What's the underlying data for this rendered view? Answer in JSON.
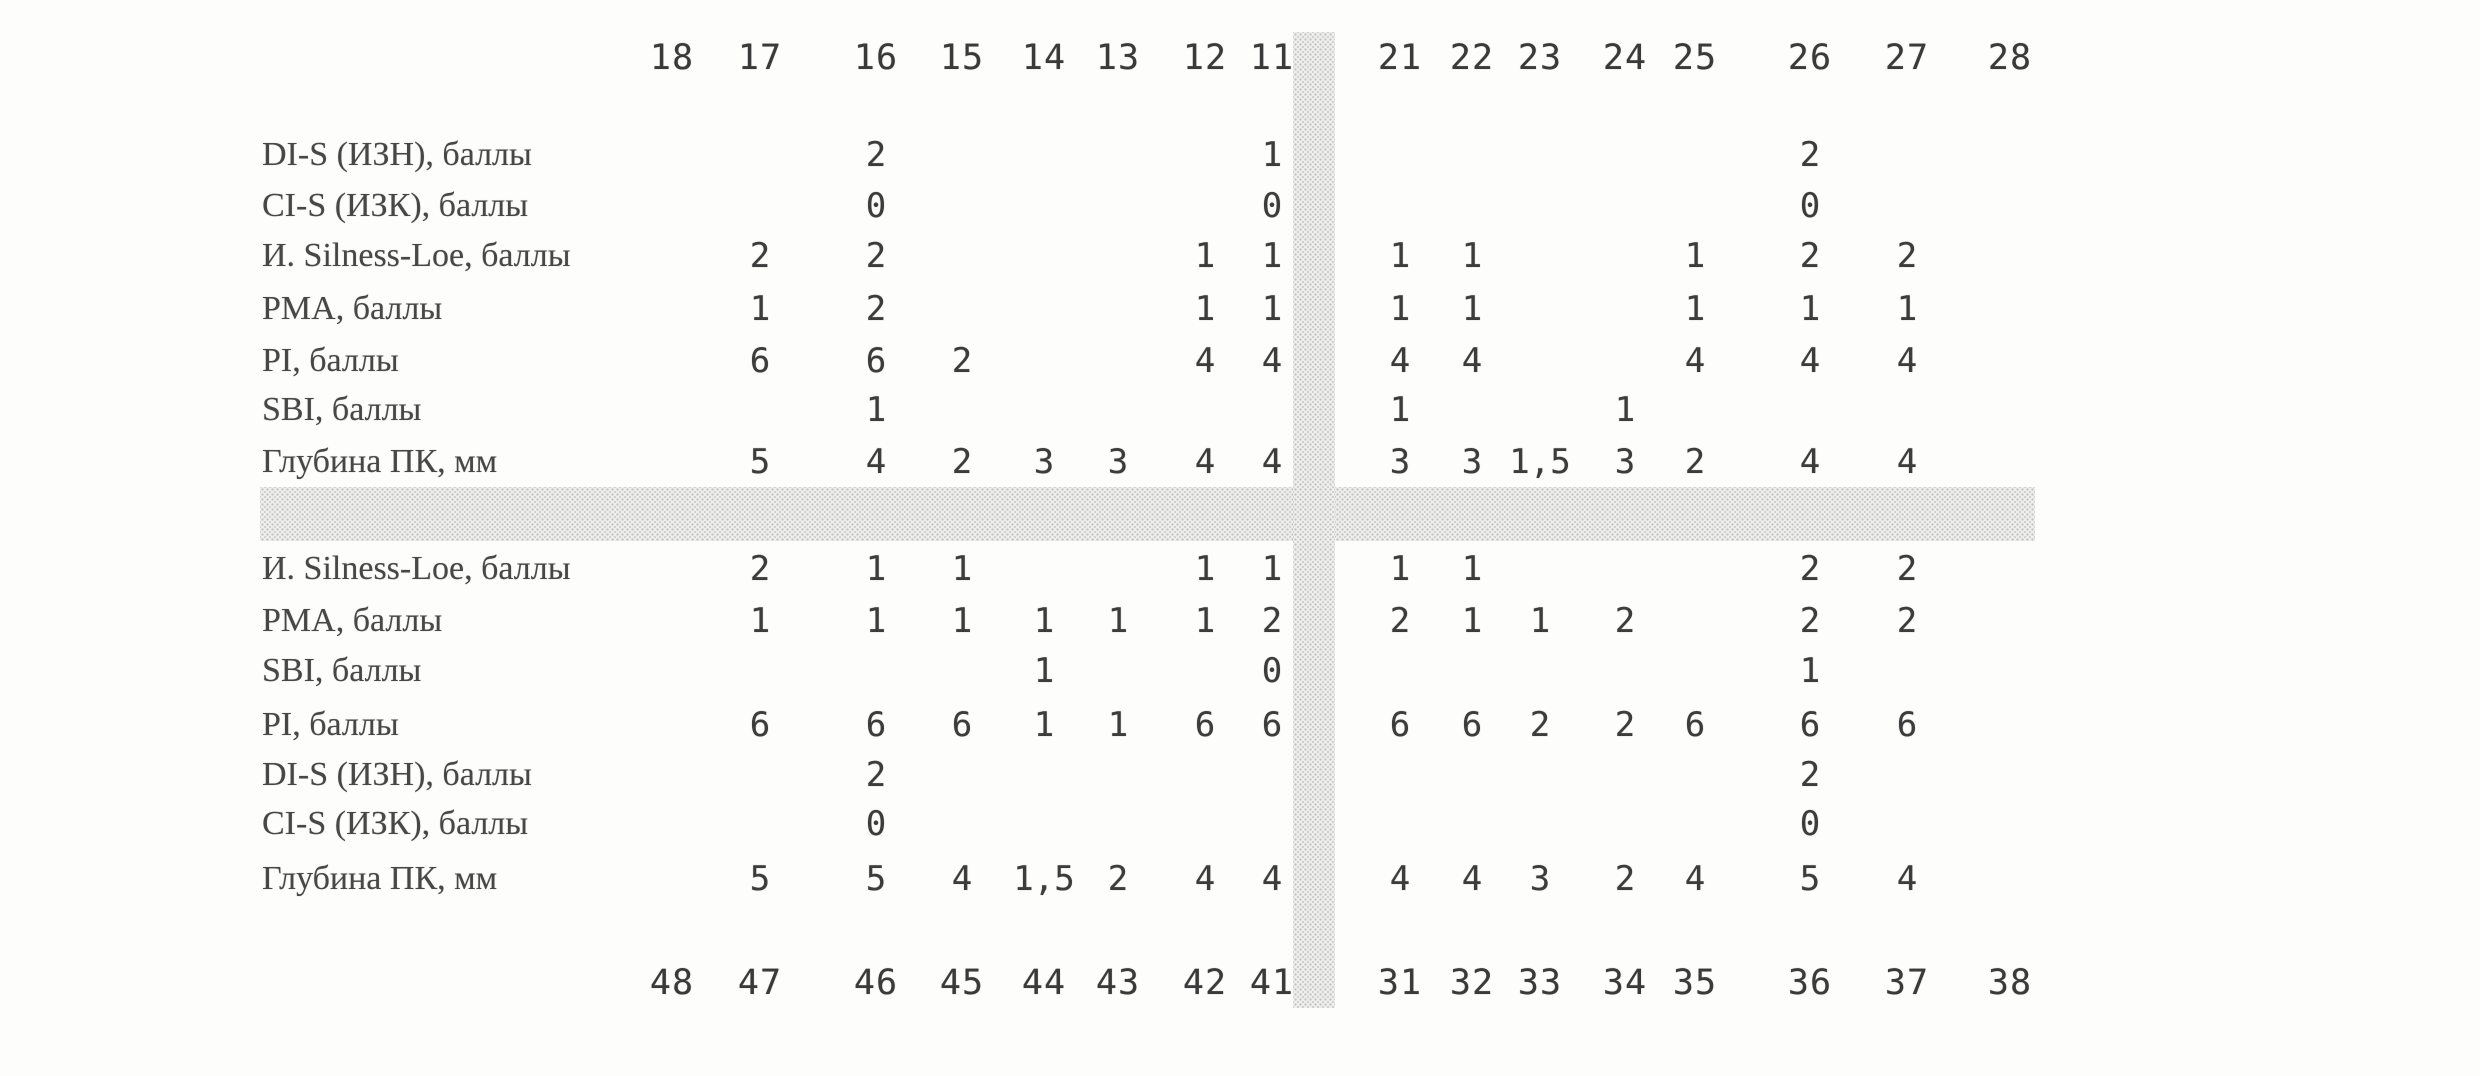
{
  "document": {
    "kind": "periodontal-status-table",
    "text_color": "#3c3c3c",
    "band_color": "#dddddd",
    "value_unit_labels": [
      "баллы",
      "мм"
    ]
  },
  "upper_teeth": [
    "18",
    "17",
    "16",
    "15",
    "14",
    "13",
    "12",
    "11",
    "21",
    "22",
    "23",
    "24",
    "25",
    "26",
    "27",
    "28"
  ],
  "lower_teeth": [
    "48",
    "47",
    "46",
    "45",
    "44",
    "43",
    "42",
    "41",
    "31",
    "32",
    "33",
    "34",
    "35",
    "36",
    "37",
    "38"
  ],
  "upper_rows": [
    {
      "label": "DI-S (ИЗН), баллы",
      "values": {
        "16": "2",
        "11": "1",
        "26": "2"
      }
    },
    {
      "label": "CI-S (ИЗК), баллы",
      "values": {
        "16": "0",
        "11": "0",
        "26": "0"
      }
    },
    {
      "label": "И. Silness-Loe, баллы",
      "values": {
        "17": "2",
        "16": "2",
        "12": "1",
        "11": "1",
        "21": "1",
        "22": "1",
        "25": "1",
        "26": "2",
        "27": "2"
      }
    },
    {
      "label": "PMA, баллы",
      "values": {
        "17": "1",
        "16": "2",
        "12": "1",
        "11": "1",
        "21": "1",
        "22": "1",
        "25": "1",
        "26": "1",
        "27": "1"
      }
    },
    {
      "label": "PI, баллы",
      "values": {
        "17": "6",
        "16": "6",
        "15": "2",
        "12": "4",
        "11": "4",
        "21": "4",
        "22": "4",
        "25": "4",
        "26": "4",
        "27": "4"
      }
    },
    {
      "label": "SBI, баллы",
      "values": {
        "16": "1",
        "21": "1",
        "24": "1"
      }
    },
    {
      "label": "Глубина ПК, мм",
      "values": {
        "17": "5",
        "16": "4",
        "15": "2",
        "14": "3",
        "13": "3",
        "12": "4",
        "11": "4",
        "21": "3",
        "22": "3",
        "23": "1,5",
        "24": "3",
        "25": "2",
        "26": "4",
        "27": "4"
      }
    }
  ],
  "lower_rows": [
    {
      "label": "И. Silness-Loe, баллы",
      "values": {
        "47": "2",
        "46": "1",
        "45": "1",
        "42": "1",
        "41": "1",
        "31": "1",
        "32": "1",
        "36": "2",
        "37": "2"
      }
    },
    {
      "label": "PMA, баллы",
      "values": {
        "47": "1",
        "46": "1",
        "45": "1",
        "44": "1",
        "43": "1",
        "42": "1",
        "41": "2",
        "31": "2",
        "32": "1",
        "33": "1",
        "34": "2",
        "36": "2",
        "37": "2"
      }
    },
    {
      "label": "SBI, баллы",
      "values": {
        "44": "1",
        "41": "0",
        "36": "1"
      }
    },
    {
      "label": "PI, баллы",
      "values": {
        "47": "6",
        "46": "6",
        "45": "6",
        "44": "1",
        "43": "1",
        "42": "6",
        "41": "6",
        "31": "6",
        "32": "6",
        "33": "2",
        "34": "2",
        "35": "6",
        "36": "6",
        "37": "6"
      }
    },
    {
      "label": "DI-S (ИЗН), баллы",
      "values": {
        "46": "2",
        "36": "2"
      }
    },
    {
      "label": "CI-S (ИЗК), баллы",
      "values": {
        "46": "0",
        "36": "0"
      }
    },
    {
      "label": "Глубина ПК, мм",
      "values": {
        "47": "5",
        "46": "5",
        "45": "4",
        "44": "1,5",
        "43": "2",
        "42": "4",
        "41": "4",
        "31": "4",
        "32": "4",
        "33": "3",
        "34": "2",
        "35": "4",
        "36": "5",
        "37": "4"
      }
    }
  ]
}
